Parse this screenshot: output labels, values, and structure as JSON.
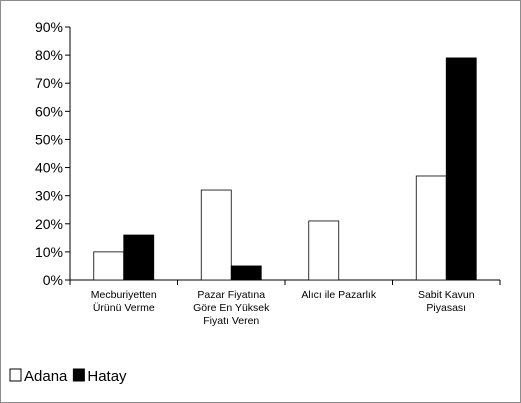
{
  "chart_data": {
    "type": "bar",
    "categories": [
      [
        "Mecburiyetten",
        "Ürünü Verme"
      ],
      [
        "Pazar Fiyatına",
        "Göre En Yüksek",
        "Fiyatı Veren"
      ],
      [
        "Alıcı ile Pazarlık"
      ],
      [
        "Sabit Kavun",
        "Piyasası"
      ]
    ],
    "series": [
      {
        "name": "Adana",
        "values": [
          10,
          32,
          21,
          37
        ],
        "color": "#ffffff"
      },
      {
        "name": "Hatay",
        "values": [
          16,
          5,
          0,
          79
        ],
        "color": "#000000"
      }
    ],
    "yticks": [
      "0%",
      "10%",
      "20%",
      "30%",
      "40%",
      "50%",
      "60%",
      "70%",
      "80%",
      "90%"
    ],
    "ylim": [
      0,
      90
    ],
    "grid": false,
    "legend_position": "bottom-left"
  }
}
